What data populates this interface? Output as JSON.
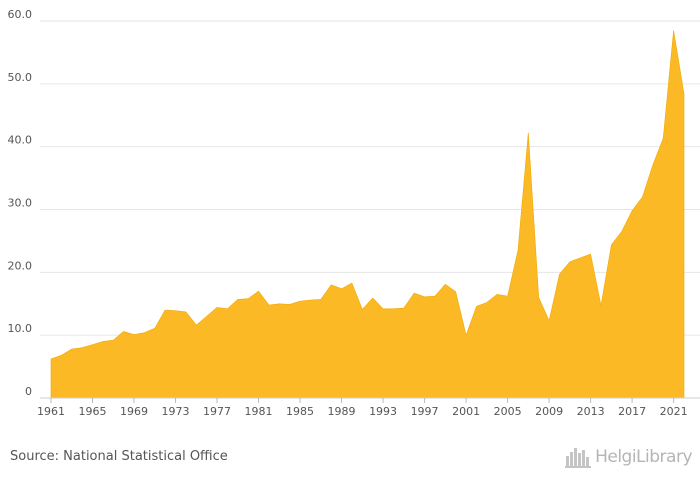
{
  "chart_data": {
    "type": "area",
    "title": "",
    "xlabel": "",
    "ylabel": "",
    "ylim": [
      0,
      60
    ],
    "yticks": [
      "0",
      "10.0",
      "20.0",
      "30.0",
      "40.0",
      "50.0",
      "60.0"
    ],
    "xticks": [
      "1961",
      "1965",
      "1969",
      "1973",
      "1977",
      "1981",
      "1985",
      "1989",
      "1993",
      "1997",
      "2001",
      "2005",
      "2009",
      "2013",
      "2017",
      "2021"
    ],
    "grid": true,
    "color": "#FBB925",
    "x": [
      1961,
      1962,
      1963,
      1964,
      1965,
      1966,
      1967,
      1968,
      1969,
      1970,
      1971,
      1972,
      1973,
      1974,
      1975,
      1976,
      1977,
      1978,
      1979,
      1980,
      1981,
      1982,
      1983,
      1984,
      1985,
      1986,
      1987,
      1988,
      1989,
      1990,
      1991,
      1992,
      1993,
      1994,
      1995,
      1996,
      1997,
      1998,
      1999,
      2000,
      2001,
      2002,
      2003,
      2004,
      2005,
      2006,
      2007,
      2008,
      2009,
      2010,
      2011,
      2012,
      2013,
      2014,
      2015,
      2016,
      2017,
      2018,
      2019,
      2020,
      2021,
      2022
    ],
    "values": [
      6.2,
      6.8,
      7.8,
      8.0,
      8.5,
      9.0,
      9.2,
      10.6,
      10.1,
      10.4,
      11.1,
      14.0,
      13.9,
      13.7,
      11.6,
      13.0,
      14.4,
      14.2,
      15.7,
      15.8,
      17.0,
      14.8,
      15.0,
      14.9,
      15.4,
      15.6,
      15.7,
      18.0,
      17.4,
      18.3,
      14.1,
      15.9,
      14.2,
      14.2,
      14.3,
      16.7,
      16.1,
      16.2,
      18.1,
      16.9,
      10.0,
      14.6,
      15.2,
      16.5,
      16.2,
      23.5,
      42.2,
      16.0,
      12.3,
      19.7,
      21.7,
      22.3,
      22.9,
      14.7,
      24.4,
      26.5,
      29.8,
      32.0,
      37.1,
      41.3,
      58.5,
      48.4
    ]
  },
  "footer": {
    "source": "Source: National Statistical Office",
    "logo_text": "HelgiLibrary",
    "logo_icon": "city-skyline-icon"
  }
}
